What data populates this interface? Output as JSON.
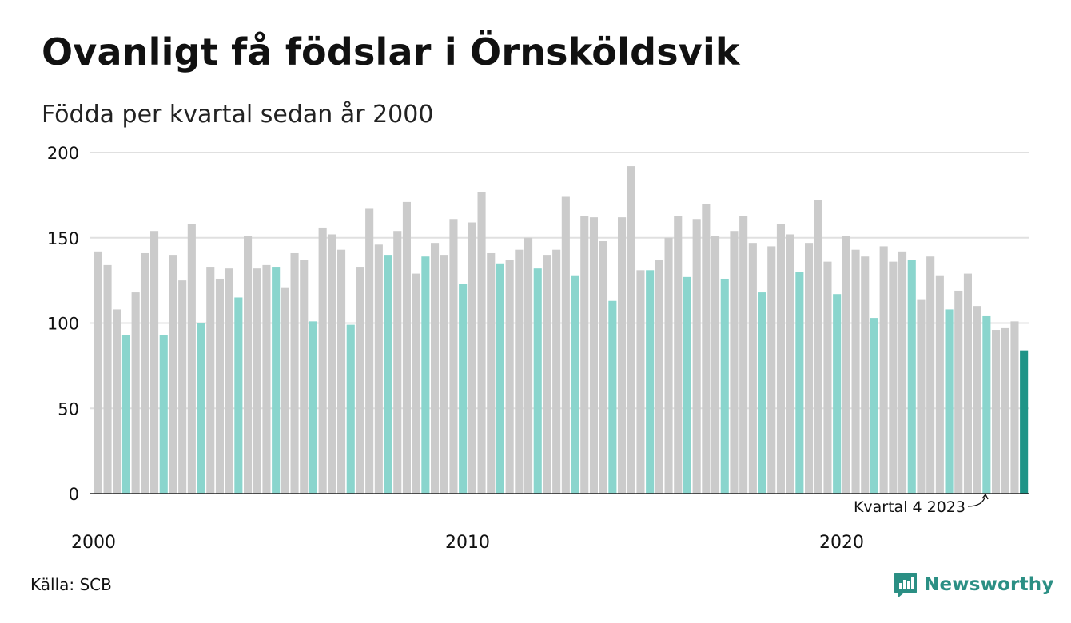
{
  "title": "Ovanligt få födslar i Örnsköldsvik",
  "subtitle": "Födda per kvartal sedan år 2000",
  "source": "Källa: SCB",
  "brand": {
    "name": "Newsworthy"
  },
  "colors": {
    "bar_default": "#cbcbcb",
    "bar_q4": "#8ad5cd",
    "bar_latest": "#1f9487",
    "grid": "#e0e0e0",
    "axis": "#222222",
    "brand": "#2b8f84"
  },
  "chart_data": {
    "type": "bar",
    "title": "Ovanligt få födslar i Örnsköldsvik",
    "subtitle": "Födda per kvartal sedan år 2000",
    "start_year": 2000,
    "ylim": [
      0,
      200
    ],
    "yticks": [
      0,
      50,
      100,
      150,
      200
    ],
    "xtick_labels": [
      "2000",
      "2010",
      "2020"
    ],
    "grid": true,
    "highlight_rule": "fourth quarter of each year highlighted; latest quarter darkest",
    "annotation": "Kvartal 4 2023",
    "values": [
      142,
      134,
      108,
      93,
      118,
      141,
      154,
      93,
      140,
      125,
      158,
      100,
      133,
      126,
      132,
      115,
      151,
      132,
      134,
      133,
      121,
      141,
      137,
      101,
      156,
      152,
      143,
      99,
      133,
      167,
      146,
      140,
      154,
      171,
      129,
      139,
      147,
      140,
      161,
      123,
      159,
      177,
      141,
      135,
      137,
      143,
      150,
      132,
      140,
      143,
      174,
      128,
      163,
      162,
      148,
      113,
      162,
      192,
      131,
      131,
      137,
      150,
      163,
      127,
      161,
      170,
      151,
      126,
      154,
      163,
      147,
      118,
      145,
      158,
      152,
      130,
      147,
      172,
      136,
      117,
      151,
      143,
      139,
      103,
      145,
      136,
      142,
      137,
      114,
      139,
      128,
      108,
      119,
      129,
      110,
      104,
      96,
      97,
      101,
      84
    ]
  }
}
